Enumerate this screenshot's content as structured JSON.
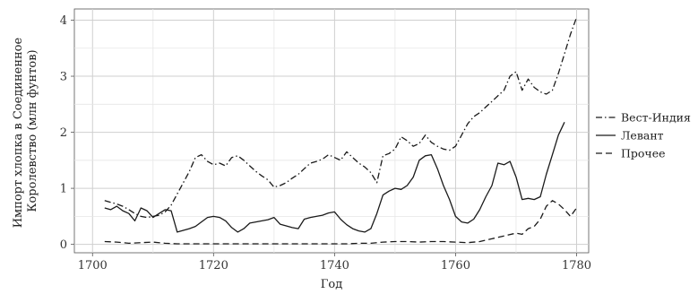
{
  "chart_data": {
    "type": "line",
    "xlabel": "Год",
    "ylabel_lines": [
      "Импорт хлопка в Соединенное",
      "Королевство (млн фунтов)"
    ],
    "xlim": [
      1697,
      1782
    ],
    "ylim": [
      -0.15,
      4.2
    ],
    "xticks": [
      1700,
      1720,
      1740,
      1760,
      1780
    ],
    "yticks": [
      0,
      1,
      2,
      3,
      4
    ],
    "grid": true,
    "legend_position": "right",
    "series": [
      {
        "name": "Вест-Индия",
        "dash": "dotdash",
        "points": [
          [
            1702,
            0.78
          ],
          [
            1703,
            0.75
          ],
          [
            1704,
            0.72
          ],
          [
            1705,
            0.68
          ],
          [
            1706,
            0.62
          ],
          [
            1707,
            0.55
          ],
          [
            1708,
            0.5
          ],
          [
            1709,
            0.48
          ],
          [
            1710,
            0.5
          ],
          [
            1711,
            0.52
          ],
          [
            1712,
            0.58
          ],
          [
            1713,
            0.7
          ],
          [
            1714,
            0.9
          ],
          [
            1715,
            1.1
          ],
          [
            1716,
            1.3
          ],
          [
            1717,
            1.55
          ],
          [
            1718,
            1.6
          ],
          [
            1719,
            1.48
          ],
          [
            1720,
            1.42
          ],
          [
            1721,
            1.45
          ],
          [
            1722,
            1.4
          ],
          [
            1723,
            1.55
          ],
          [
            1724,
            1.58
          ],
          [
            1725,
            1.5
          ],
          [
            1726,
            1.4
          ],
          [
            1727,
            1.3
          ],
          [
            1728,
            1.22
          ],
          [
            1729,
            1.15
          ],
          [
            1730,
            1.02
          ],
          [
            1731,
            1.05
          ],
          [
            1732,
            1.1
          ],
          [
            1733,
            1.18
          ],
          [
            1734,
            1.25
          ],
          [
            1735,
            1.35
          ],
          [
            1736,
            1.45
          ],
          [
            1737,
            1.48
          ],
          [
            1738,
            1.52
          ],
          [
            1739,
            1.6
          ],
          [
            1740,
            1.55
          ],
          [
            1741,
            1.5
          ],
          [
            1742,
            1.65
          ],
          [
            1743,
            1.55
          ],
          [
            1744,
            1.45
          ],
          [
            1745,
            1.38
          ],
          [
            1746,
            1.28
          ],
          [
            1747,
            1.1
          ],
          [
            1748,
            1.58
          ],
          [
            1749,
            1.62
          ],
          [
            1750,
            1.7
          ],
          [
            1751,
            1.92
          ],
          [
            1752,
            1.85
          ],
          [
            1753,
            1.75
          ],
          [
            1754,
            1.8
          ],
          [
            1755,
            1.95
          ],
          [
            1756,
            1.82
          ],
          [
            1757,
            1.75
          ],
          [
            1758,
            1.7
          ],
          [
            1759,
            1.68
          ],
          [
            1760,
            1.75
          ],
          [
            1761,
            1.95
          ],
          [
            1762,
            2.15
          ],
          [
            1763,
            2.28
          ],
          [
            1764,
            2.35
          ],
          [
            1765,
            2.45
          ],
          [
            1766,
            2.55
          ],
          [
            1767,
            2.65
          ],
          [
            1768,
            2.75
          ],
          [
            1769,
            3.0
          ],
          [
            1770,
            3.08
          ],
          [
            1771,
            2.75
          ],
          [
            1772,
            2.95
          ],
          [
            1773,
            2.8
          ],
          [
            1774,
            2.72
          ],
          [
            1775,
            2.68
          ],
          [
            1776,
            2.75
          ],
          [
            1777,
            3.05
          ],
          [
            1778,
            3.4
          ],
          [
            1779,
            3.75
          ],
          [
            1780,
            4.05
          ]
        ]
      },
      {
        "name": "Левант",
        "dash": "solid",
        "points": [
          [
            1702,
            0.65
          ],
          [
            1703,
            0.62
          ],
          [
            1704,
            0.68
          ],
          [
            1705,
            0.6
          ],
          [
            1706,
            0.55
          ],
          [
            1707,
            0.42
          ],
          [
            1708,
            0.65
          ],
          [
            1709,
            0.6
          ],
          [
            1710,
            0.48
          ],
          [
            1711,
            0.55
          ],
          [
            1712,
            0.62
          ],
          [
            1713,
            0.6
          ],
          [
            1714,
            0.22
          ],
          [
            1715,
            0.25
          ],
          [
            1716,
            0.28
          ],
          [
            1717,
            0.32
          ],
          [
            1718,
            0.4
          ],
          [
            1719,
            0.48
          ],
          [
            1720,
            0.5
          ],
          [
            1721,
            0.48
          ],
          [
            1722,
            0.42
          ],
          [
            1723,
            0.3
          ],
          [
            1724,
            0.22
          ],
          [
            1725,
            0.28
          ],
          [
            1726,
            0.38
          ],
          [
            1727,
            0.4
          ],
          [
            1728,
            0.42
          ],
          [
            1729,
            0.44
          ],
          [
            1730,
            0.48
          ],
          [
            1731,
            0.36
          ],
          [
            1732,
            0.33
          ],
          [
            1733,
            0.3
          ],
          [
            1734,
            0.28
          ],
          [
            1735,
            0.45
          ],
          [
            1736,
            0.48
          ],
          [
            1737,
            0.5
          ],
          [
            1738,
            0.52
          ],
          [
            1739,
            0.56
          ],
          [
            1740,
            0.58
          ],
          [
            1741,
            0.45
          ],
          [
            1742,
            0.35
          ],
          [
            1743,
            0.28
          ],
          [
            1744,
            0.24
          ],
          [
            1745,
            0.22
          ],
          [
            1746,
            0.28
          ],
          [
            1747,
            0.55
          ],
          [
            1748,
            0.88
          ],
          [
            1749,
            0.95
          ],
          [
            1750,
            1.0
          ],
          [
            1751,
            0.98
          ],
          [
            1752,
            1.05
          ],
          [
            1753,
            1.2
          ],
          [
            1754,
            1.5
          ],
          [
            1755,
            1.58
          ],
          [
            1756,
            1.6
          ],
          [
            1757,
            1.35
          ],
          [
            1758,
            1.05
          ],
          [
            1759,
            0.8
          ],
          [
            1760,
            0.5
          ],
          [
            1761,
            0.4
          ],
          [
            1762,
            0.38
          ],
          [
            1763,
            0.45
          ],
          [
            1764,
            0.62
          ],
          [
            1765,
            0.85
          ],
          [
            1766,
            1.05
          ],
          [
            1767,
            1.45
          ],
          [
            1768,
            1.42
          ],
          [
            1769,
            1.48
          ],
          [
            1770,
            1.2
          ],
          [
            1771,
            0.8
          ],
          [
            1772,
            0.82
          ],
          [
            1773,
            0.8
          ],
          [
            1774,
            0.85
          ],
          [
            1775,
            1.25
          ],
          [
            1776,
            1.6
          ],
          [
            1777,
            1.95
          ],
          [
            1778,
            2.18
          ]
        ]
      },
      {
        "name": "Прочее",
        "dash": "dashed",
        "points": [
          [
            1702,
            0.05
          ],
          [
            1704,
            0.04
          ],
          [
            1706,
            0.02
          ],
          [
            1708,
            0.03
          ],
          [
            1710,
            0.04
          ],
          [
            1712,
            0.02
          ],
          [
            1714,
            0.01
          ],
          [
            1716,
            0.01
          ],
          [
            1718,
            0.01
          ],
          [
            1720,
            0.01
          ],
          [
            1722,
            0.01
          ],
          [
            1724,
            0.01
          ],
          [
            1726,
            0.01
          ],
          [
            1728,
            0.01
          ],
          [
            1730,
            0.01
          ],
          [
            1732,
            0.01
          ],
          [
            1734,
            0.01
          ],
          [
            1736,
            0.01
          ],
          [
            1738,
            0.01
          ],
          [
            1740,
            0.01
          ],
          [
            1742,
            0.01
          ],
          [
            1744,
            0.02
          ],
          [
            1746,
            0.02
          ],
          [
            1748,
            0.04
          ],
          [
            1750,
            0.05
          ],
          [
            1752,
            0.05
          ],
          [
            1754,
            0.04
          ],
          [
            1756,
            0.05
          ],
          [
            1758,
            0.05
          ],
          [
            1760,
            0.04
          ],
          [
            1762,
            0.03
          ],
          [
            1764,
            0.05
          ],
          [
            1766,
            0.1
          ],
          [
            1768,
            0.15
          ],
          [
            1770,
            0.2
          ],
          [
            1771,
            0.18
          ],
          [
            1772,
            0.28
          ],
          [
            1773,
            0.32
          ],
          [
            1774,
            0.45
          ],
          [
            1775,
            0.68
          ],
          [
            1776,
            0.78
          ],
          [
            1777,
            0.72
          ],
          [
            1778,
            0.62
          ],
          [
            1779,
            0.5
          ],
          [
            1780,
            0.65
          ]
        ]
      }
    ]
  }
}
